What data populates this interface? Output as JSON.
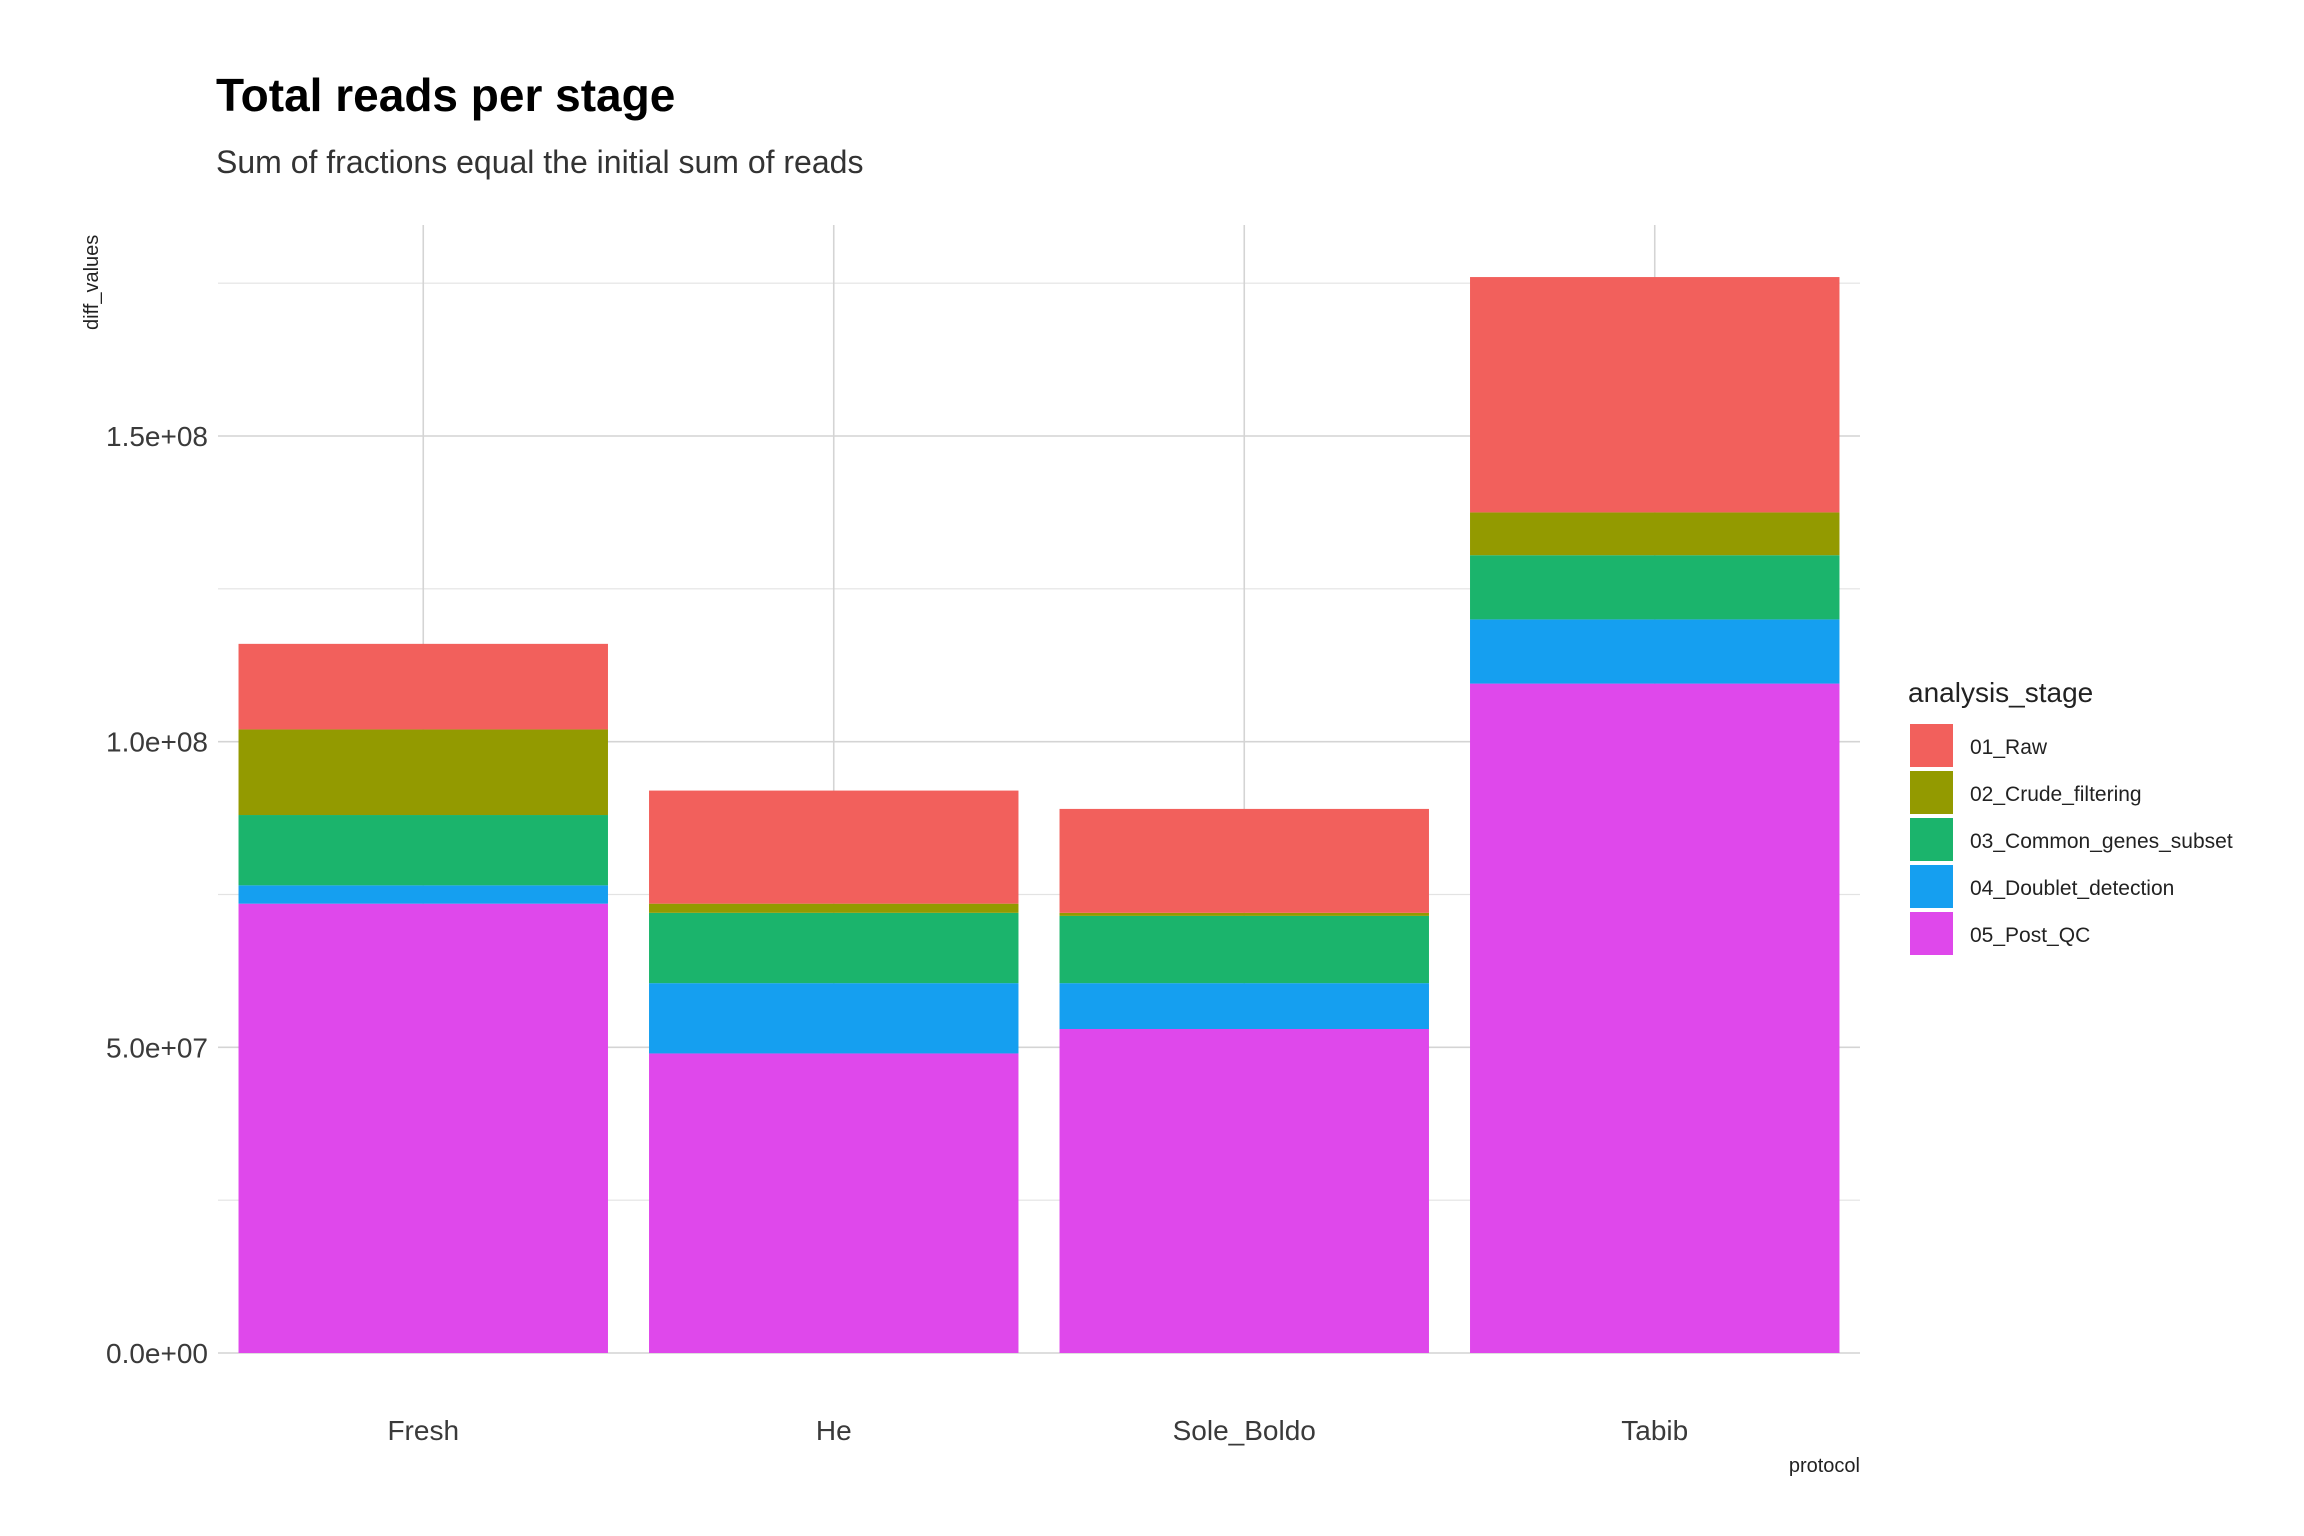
{
  "chart_data": {
    "type": "bar",
    "stacked": true,
    "title": "Total reads per stage",
    "subtitle": "Sum of fractions equal the initial sum of reads",
    "xlabel": "protocol",
    "ylabel": "diff_values",
    "categories": [
      "Fresh",
      "He",
      "Sole_Boldo",
      "Tabib"
    ],
    "ylim": [
      0,
      185000000
    ],
    "yticks": [
      {
        "value": 0,
        "label": "0.0e+00"
      },
      {
        "value": 50000000,
        "label": "5.0e+07"
      },
      {
        "value": 100000000,
        "label": "1.0e+08"
      },
      {
        "value": 150000000,
        "label": "1.5e+08"
      }
    ],
    "legend_title": "analysis_stage",
    "legend_position": "right",
    "grid": true,
    "series": [
      {
        "name": "01_Raw",
        "color": "#F2605C",
        "values": [
          14000000,
          18500000,
          17000000,
          38500000
        ]
      },
      {
        "name": "02_Crude_filtering",
        "color": "#939A00",
        "values": [
          14000000,
          1500000,
          500000,
          7000000
        ]
      },
      {
        "name": "03_Common_genes_subset",
        "color": "#1BB46C",
        "values": [
          11500000,
          11500000,
          11000000,
          10500000
        ]
      },
      {
        "name": "04_Doublet_detection",
        "color": "#159FF0",
        "values": [
          3000000,
          11500000,
          7500000,
          10500000
        ]
      },
      {
        "name": "05_Post_QC",
        "color": "#DF48EB",
        "values": [
          73500000,
          49000000,
          53000000,
          109500000
        ]
      }
    ]
  }
}
